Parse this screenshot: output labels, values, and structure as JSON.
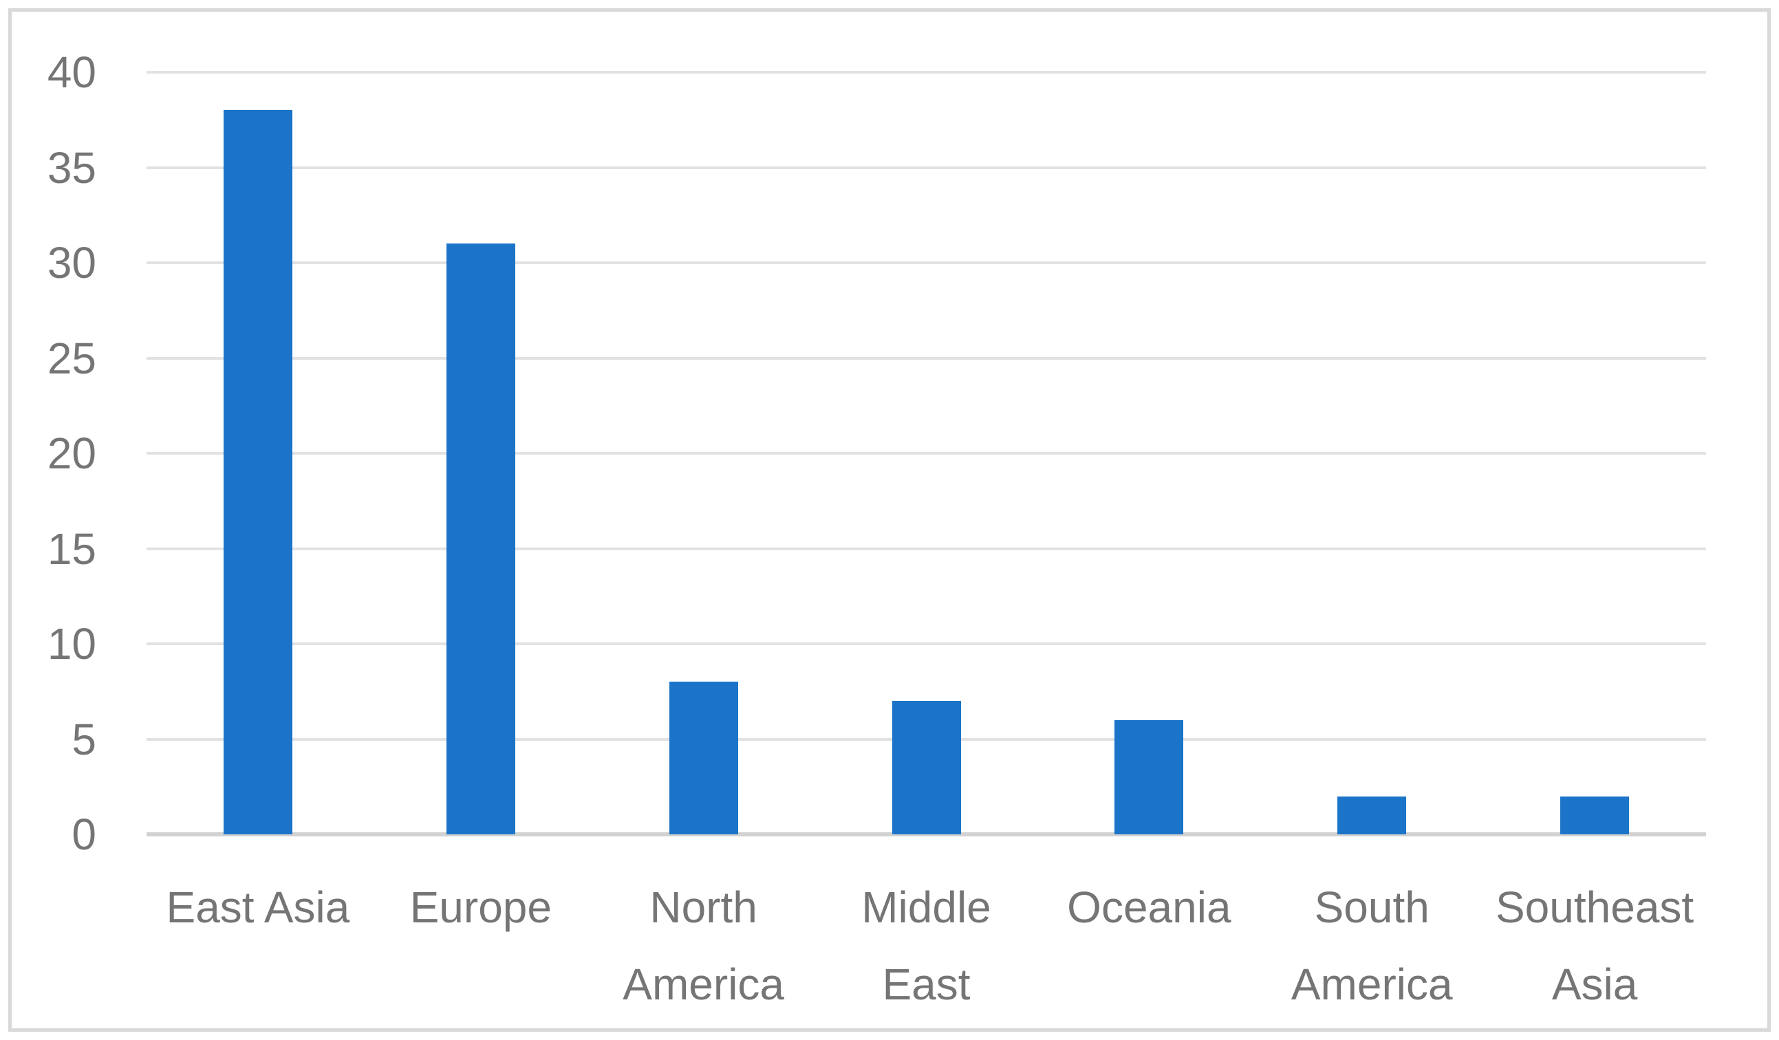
{
  "chart_data": {
    "type": "bar",
    "title": "",
    "xlabel": "",
    "ylabel": "",
    "categories": [
      "East Asia",
      "Europe",
      "North America",
      "Middle East",
      "Oceania",
      "South America",
      "Southeast Asia"
    ],
    "category_labels_wrapped": [
      "East Asia",
      "Europe",
      "North\nAmerica",
      "Middle\nEast",
      "Oceania",
      "South\nAmerica",
      "Southeast\nAsia"
    ],
    "values": [
      38,
      31,
      8,
      7,
      6,
      2,
      2
    ],
    "ylim": [
      0,
      40
    ],
    "yticks": [
      0,
      5,
      10,
      15,
      20,
      25,
      30,
      35,
      40
    ],
    "grid": "horizontal",
    "legend_position": "none",
    "bar_color": "#1B74C8",
    "gridline_color": "#E2E2E2",
    "axis_line_color": "#D2D2D2",
    "tick_label_color": "#757575",
    "frame_border_color": "#D9D9D9",
    "background_color": "#FFFFFF"
  }
}
